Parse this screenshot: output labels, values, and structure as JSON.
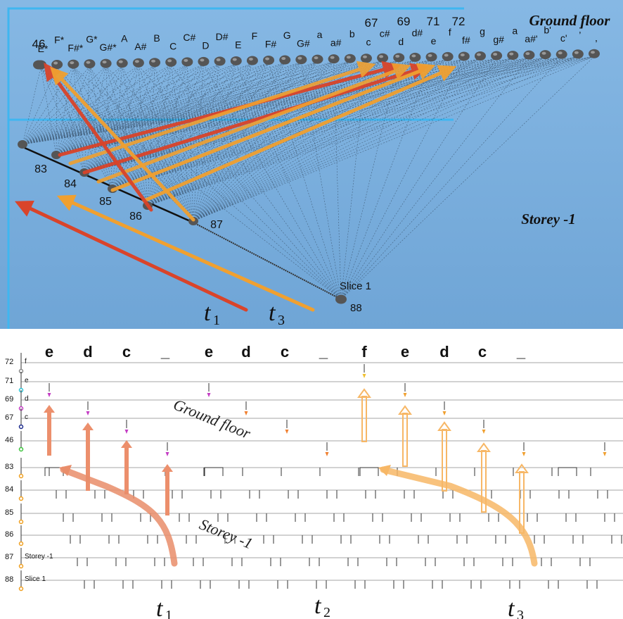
{
  "top_panel": {
    "title_ground": "Ground floor",
    "title_storey": "Storey -1",
    "slice_label": "Slice 1",
    "neuron_88": "88",
    "numbers_top": [
      "46",
      "67",
      "69",
      "71",
      "72"
    ],
    "notes_row": [
      "E*",
      "F*",
      "F#*",
      "G*",
      "G#*",
      "A",
      "A#",
      "B",
      "C",
      "C#",
      "D",
      "D#",
      "E",
      "F",
      "F#",
      "G",
      "G#",
      "a",
      "a#",
      "b",
      "c",
      "c#",
      "d",
      "d#",
      "e",
      "f",
      "f#",
      "g",
      "g#",
      "a",
      "a#'",
      "b'",
      "c'",
      ";",
      ","
    ],
    "storey_labels": [
      "83",
      "84",
      "85",
      "86",
      "87"
    ],
    "time_labels": [
      {
        "sym": "t",
        "sub": "1"
      },
      {
        "sym": "t",
        "sub": "3"
      }
    ]
  },
  "bottom_panel": {
    "note_headers": [
      "e",
      "d",
      "c",
      "_",
      "e",
      "d",
      "c",
      "_",
      "f",
      "e",
      "d",
      "c",
      "_"
    ],
    "rows": [
      {
        "num": "72",
        "tag": "f",
        "color": "#888888"
      },
      {
        "num": "71",
        "tag": "e",
        "color": "#2ec4d6"
      },
      {
        "num": "69",
        "tag": "d",
        "color": "#c43cc4"
      },
      {
        "num": "67",
        "tag": "c",
        "color": "#1c2a8c"
      },
      {
        "num": "46",
        "tag": "",
        "color": "#3cc43c"
      },
      {
        "num": "83",
        "tag": "",
        "color": "#f0a020"
      },
      {
        "num": "84",
        "tag": "",
        "color": "#f0a020"
      },
      {
        "num": "85",
        "tag": "",
        "color": "#f0a020"
      },
      {
        "num": "86",
        "tag": "",
        "color": "#f0a020"
      },
      {
        "num": "87",
        "tag": "Storey -1",
        "color": "#f0a020"
      },
      {
        "num": "88",
        "tag": "Slice 1",
        "color": "#f0a020"
      }
    ],
    "ground_floor_label": "Ground floor",
    "storey_label": "Storey -1",
    "time_labels": [
      {
        "sym": "t",
        "sub": "1"
      },
      {
        "sym": "t",
        "sub": "2"
      },
      {
        "sym": "t",
        "sub": "3"
      }
    ]
  },
  "colors": {
    "top_bg": "#7fb2df",
    "cyan_line": "#3fb6f0",
    "red_arrow": "#d9442a",
    "orange_arrow": "#f0a030",
    "salmon_arrow": "#e98d6a",
    "light_orange_arrow": "#f7b766"
  }
}
